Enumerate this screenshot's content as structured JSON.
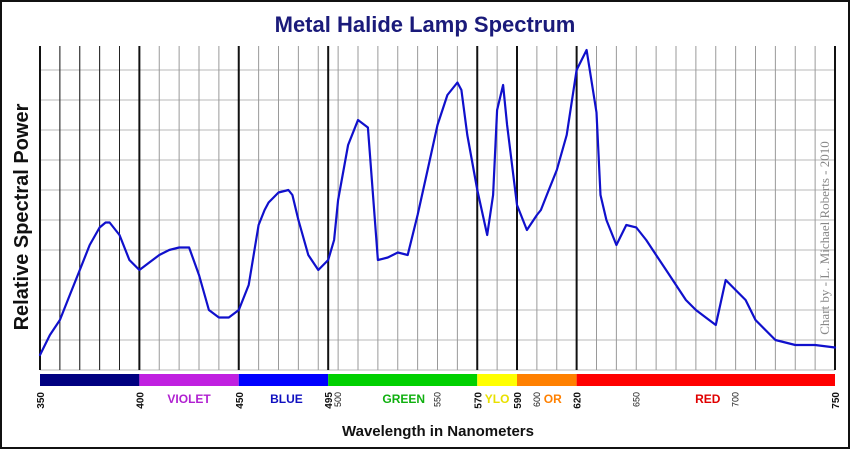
{
  "chart_data": {
    "type": "line",
    "title": "Metal Halide Lamp Spectrum",
    "xlabel": "Wavelength in Nanometers",
    "ylabel": "Relative Spectral Power",
    "credit": "Chart by - L. Michael Roberts - 2010",
    "xlim": [
      350,
      750
    ],
    "grid": true,
    "major_ticks": [
      350,
      400,
      450,
      495,
      570,
      590,
      620,
      750
    ],
    "minor_ticks": [
      500,
      550,
      600,
      650,
      700
    ],
    "bands": [
      {
        "start": 350,
        "end": 400,
        "color": "#000080",
        "label": ""
      },
      {
        "start": 400,
        "end": 450,
        "color": "#c020e0",
        "label": "VIOLET",
        "label_color": "#b020d0",
        "label_x": 425
      },
      {
        "start": 450,
        "end": 495,
        "color": "#0000ff",
        "label": "BLUE",
        "label_color": "#1010c0",
        "label_x": 474
      },
      {
        "start": 495,
        "end": 570,
        "color": "#00d000",
        "label": "GREEN",
        "label_color": "#10b010",
        "label_x": 533
      },
      {
        "start": 570,
        "end": 590,
        "color": "#ffff00",
        "label": "YLO",
        "label_color": "#e8e000",
        "label_x": 580
      },
      {
        "start": 590,
        "end": 620,
        "color": "#ff8000",
        "label": "OR",
        "label_color": "#ff8000",
        "label_x": 608
      },
      {
        "start": 620,
        "end": 750,
        "color": "#ff0000",
        "label": "RED",
        "label_color": "#e00000",
        "label_x": 686
      }
    ],
    "series": [
      {
        "color": "#1010cc",
        "x": [
          350,
          355,
          360,
          365,
          370,
          375,
          380,
          383,
          385,
          390,
          395,
          400,
          405,
          410,
          415,
          420,
          425,
          430,
          435,
          440,
          445,
          450,
          455,
          460,
          463,
          465,
          470,
          475,
          477,
          480,
          485,
          490,
          495,
          498,
          500,
          505,
          510,
          515,
          520,
          525,
          530,
          535,
          540,
          545,
          550,
          555,
          560,
          562,
          565,
          570,
          575,
          578,
          580,
          583,
          585,
          590,
          595,
          600,
          602,
          605,
          610,
          615,
          620,
          625,
          630,
          632,
          635,
          640,
          645,
          650,
          655,
          660,
          665,
          670,
          675,
          680,
          685,
          690,
          695,
          700,
          705,
          710,
          720,
          730,
          740,
          750
        ],
        "y": [
          3,
          7,
          10,
          15,
          20,
          25,
          28.5,
          29.5,
          29.5,
          27,
          22,
          20,
          21.5,
          23,
          24,
          24.5,
          24.5,
          19,
          12,
          10.5,
          10.5,
          12,
          17,
          29,
          32,
          33.5,
          35.5,
          36,
          35,
          30,
          23,
          20,
          22,
          26,
          34,
          45,
          50,
          48.5,
          22,
          22.5,
          23.5,
          23,
          31,
          40,
          49,
          55,
          57.5,
          56,
          47,
          36,
          27,
          35,
          52,
          57,
          49,
          33,
          28,
          31,
          32,
          35,
          40,
          47,
          60,
          64,
          51.5,
          35,
          30,
          25,
          29,
          28.5,
          26,
          23,
          20,
          17,
          14,
          12,
          10.5,
          9,
          18,
          16,
          14,
          10,
          6,
          5,
          5,
          4.5
        ]
      }
    ]
  }
}
